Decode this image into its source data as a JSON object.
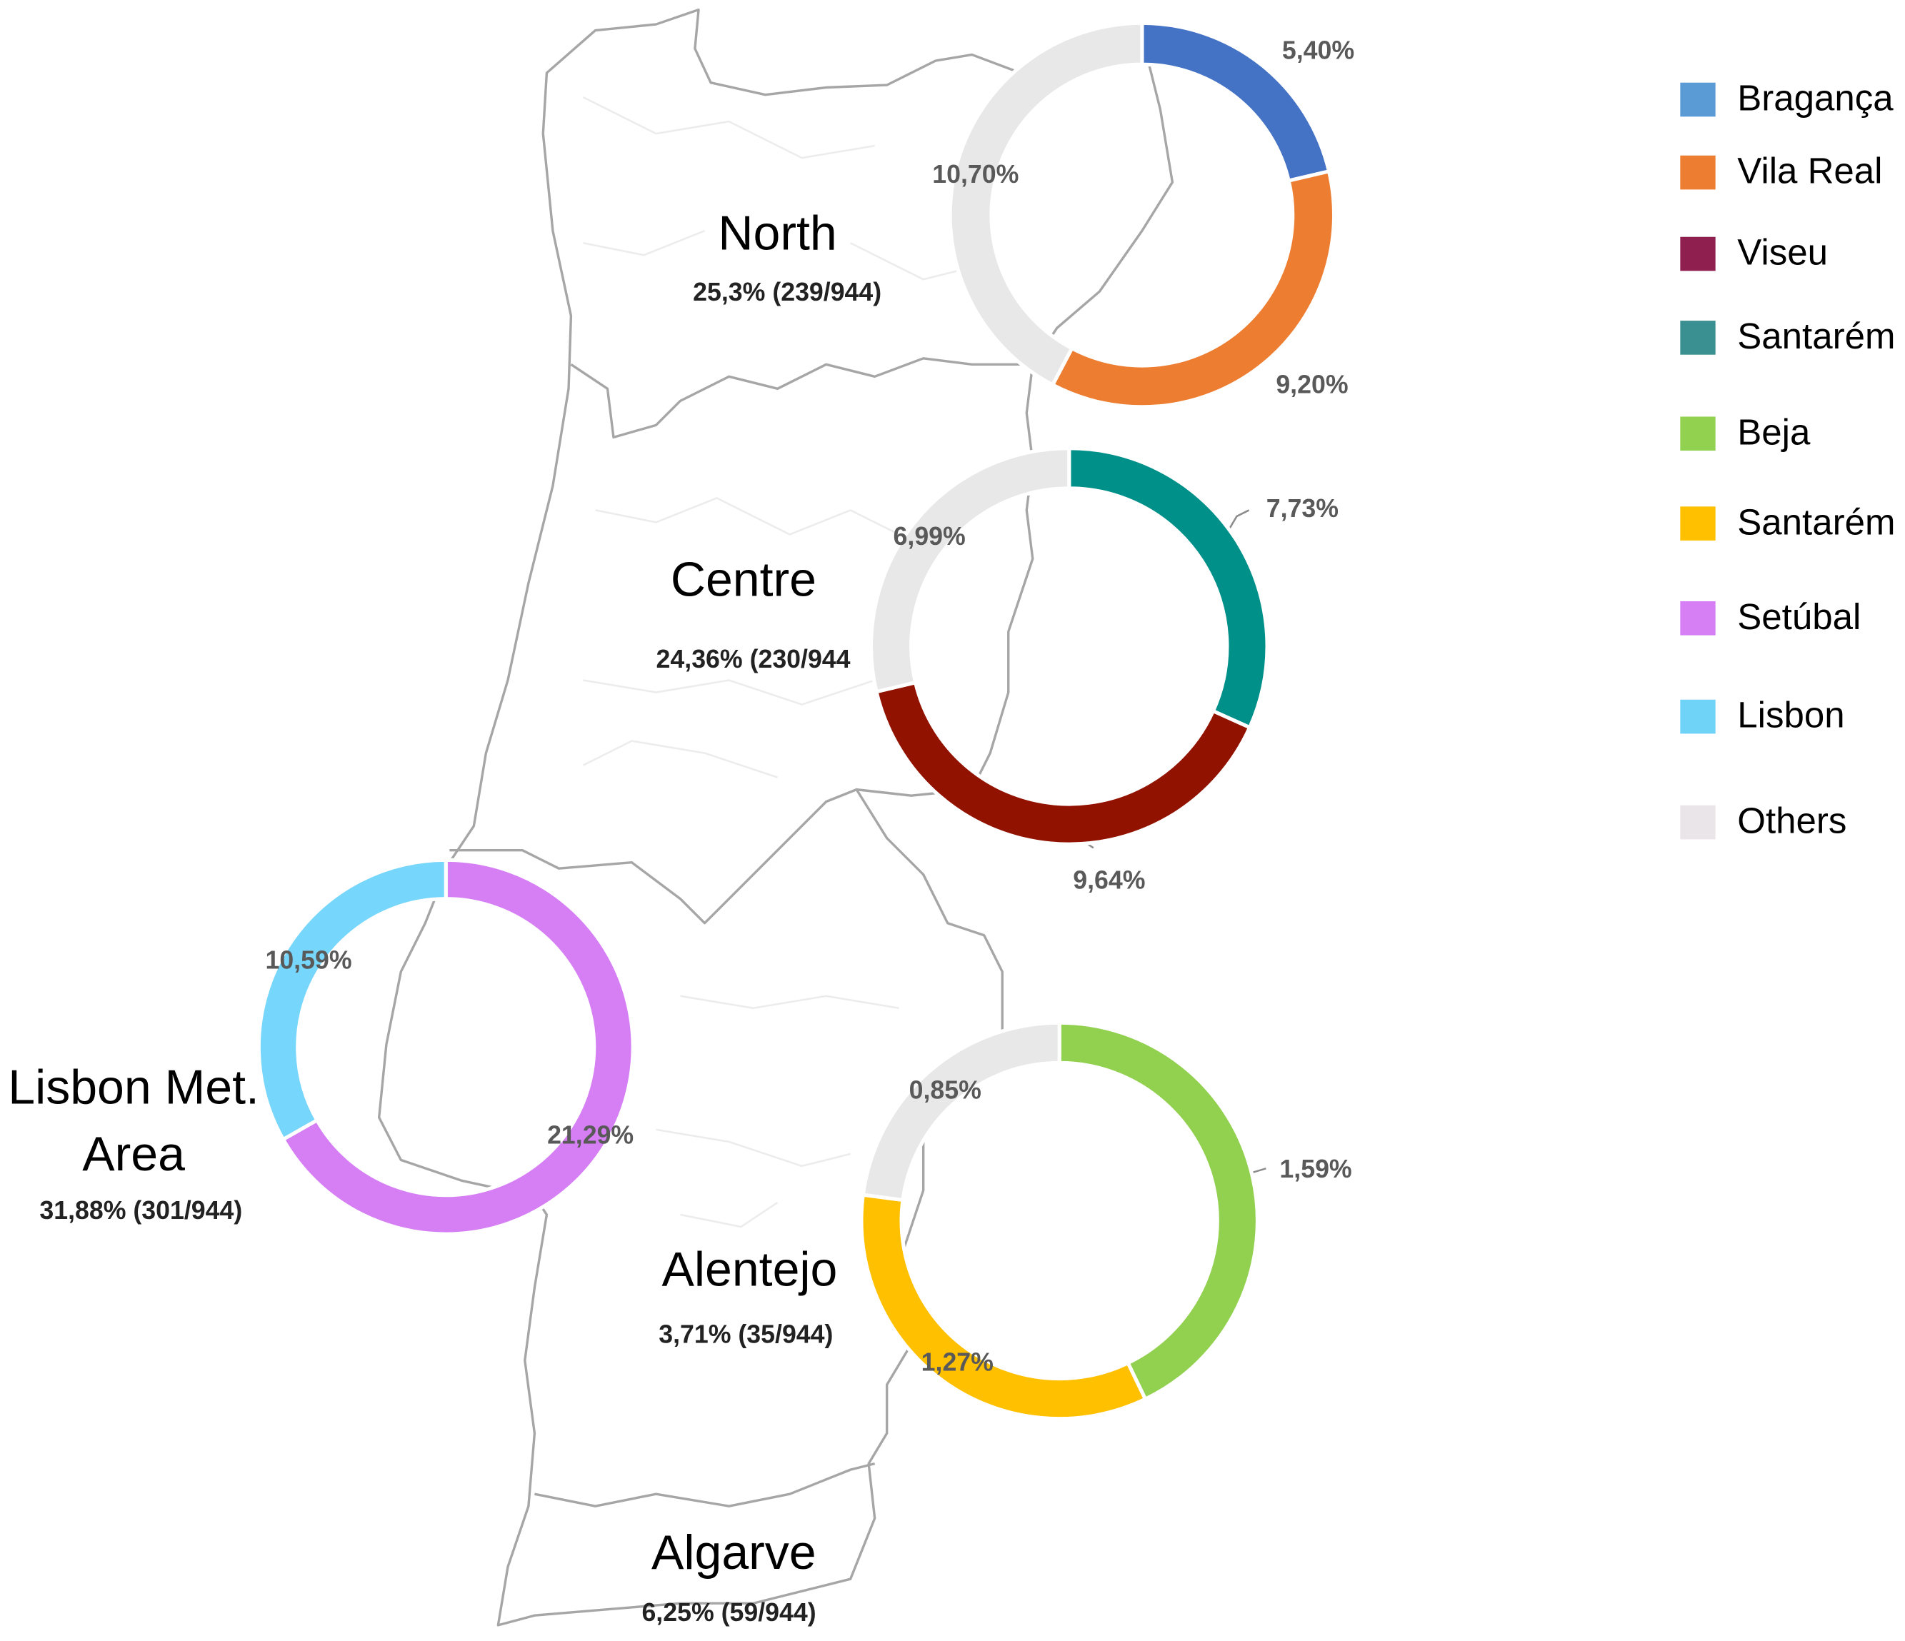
{
  "legend": [
    {
      "name": "Bragança",
      "color": "#5b9bd5"
    },
    {
      "name": "Vila Real",
      "color": "#ed7d31"
    },
    {
      "name": "Viseu",
      "color": "#8e1f4e"
    },
    {
      "name": "Santarém",
      "color": "#3a9090"
    },
    {
      "name": "Beja",
      "color": "#92d050"
    },
    {
      "name": "Santarém",
      "color": "#ffc000"
    },
    {
      "name": "Setúbal",
      "color": "#d67ff5"
    },
    {
      "name": "Lisbon",
      "color": "#6fd3f7"
    },
    {
      "name": "Others",
      "color": "#e9e5e8"
    }
  ],
  "chart_data": [
    {
      "type": "pie",
      "donut": true,
      "title": "North",
      "subtitle": "25,3% (239/944)",
      "values": [
        5.4,
        9.2,
        10.7
      ],
      "value_labels": [
        "5,40%",
        "9,20%",
        "10,70%"
      ],
      "colors": [
        "#4472c4",
        "#ed7d31",
        "#e8e8e8"
      ]
    },
    {
      "type": "pie",
      "donut": true,
      "title": "Centre",
      "subtitle": "24,36% (230/944",
      "values": [
        7.73,
        9.64,
        6.99
      ],
      "value_labels": [
        "7,73%",
        "9,64%",
        "6,99%"
      ],
      "colors": [
        "#00908a",
        "#921200",
        "#e8e8e8"
      ]
    },
    {
      "type": "pie",
      "donut": true,
      "title": "Lisbon Met. Area",
      "subtitle": "31,88% (301/944)",
      "values": [
        21.29,
        10.59
      ],
      "value_labels": [
        "21,29%",
        "10,59%"
      ],
      "colors": [
        "#d67ff5",
        "#77d6fb"
      ]
    },
    {
      "type": "pie",
      "donut": true,
      "title": "Alentejo",
      "subtitle": "3,71% (35/944)",
      "values": [
        1.59,
        1.27,
        0.85
      ],
      "value_labels": [
        "1,59%",
        "1,27%",
        "0,85%"
      ],
      "colors": [
        "#92d050",
        "#ffc000",
        "#e8e8e8"
      ]
    }
  ],
  "regions": [
    {
      "title": "Algarve",
      "subtitle": "6,25% (59/944)"
    }
  ]
}
